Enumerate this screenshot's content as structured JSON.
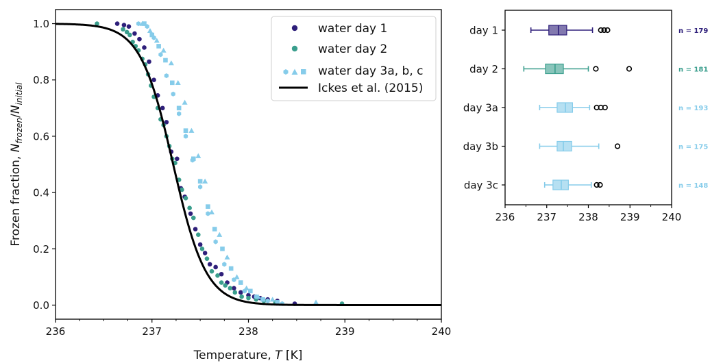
{
  "chart_data": [
    {
      "type": "scatter",
      "xlabel": "Temperature, T [K]",
      "xlabel_text": "Temperature, ",
      "xlabel_var": "T",
      "xlabel_unit": " [K]",
      "ylabel_prefix": "Frozen fraction, ",
      "ylabel_N1": "N",
      "ylabel_sub1": "frozen",
      "ylabel_slash": "/",
      "ylabel_N2": "N",
      "ylabel_sub2": "initial",
      "xlim": [
        236,
        240
      ],
      "ylim": [
        -0.05,
        1.05
      ],
      "xticks": [
        "236",
        "237",
        "238",
        "239",
        "240"
      ],
      "yticks": [
        "0.0",
        "0.2",
        "0.4",
        "0.6",
        "0.8",
        "1.0"
      ],
      "legend_position": "top-right",
      "legend": [
        "water day 1",
        "water day 2",
        "water day 3a, b, c",
        "Ickes et al. (2015)"
      ],
      "colors": {
        "day1": "#2e1f7a",
        "day2": "#3a9e8d",
        "day3": "#86ccea",
        "fit": "#000000"
      },
      "fit_curve": {
        "name": "Ickes et al. (2015)",
        "type": "logistic",
        "midpoint_K": 237.22,
        "width_K": 0.17
      },
      "series": [
        {
          "name": "water day 1",
          "marker": "circle",
          "points": [
            [
              236.64,
              1.0
            ],
            [
              236.71,
              0.995
            ],
            [
              236.76,
              0.99
            ],
            [
              236.82,
              0.965
            ],
            [
              236.87,
              0.945
            ],
            [
              236.92,
              0.915
            ],
            [
              236.97,
              0.865
            ],
            [
              237.02,
              0.8
            ],
            [
              237.06,
              0.745
            ],
            [
              237.11,
              0.7
            ],
            [
              237.15,
              0.65
            ],
            [
              237.2,
              0.545
            ],
            [
              237.26,
              0.52
            ],
            [
              237.3,
              0.415
            ],
            [
              237.34,
              0.385
            ],
            [
              237.4,
              0.325
            ],
            [
              237.45,
              0.27
            ],
            [
              237.5,
              0.215
            ],
            [
              237.55,
              0.185
            ],
            [
              237.6,
              0.145
            ],
            [
              237.66,
              0.135
            ],
            [
              237.72,
              0.11
            ],
            [
              237.78,
              0.08
            ],
            [
              237.85,
              0.06
            ],
            [
              237.92,
              0.045
            ],
            [
              238.0,
              0.035
            ],
            [
              238.06,
              0.03
            ],
            [
              238.12,
              0.025
            ],
            [
              238.2,
              0.02
            ],
            [
              238.3,
              0.015
            ],
            [
              238.48,
              0.005
            ]
          ]
        },
        {
          "name": "water day 2",
          "marker": "circle",
          "points": [
            [
              236.43,
              1.0
            ],
            [
              236.7,
              0.98
            ],
            [
              236.74,
              0.97
            ],
            [
              236.77,
              0.96
            ],
            [
              236.8,
              0.935
            ],
            [
              236.83,
              0.92
            ],
            [
              236.86,
              0.905
            ],
            [
              236.9,
              0.875
            ],
            [
              236.93,
              0.855
            ],
            [
              236.96,
              0.82
            ],
            [
              236.99,
              0.78
            ],
            [
              237.02,
              0.74
            ],
            [
              237.06,
              0.7
            ],
            [
              237.09,
              0.66
            ],
            [
              237.12,
              0.64
            ],
            [
              237.15,
              0.6
            ],
            [
              237.18,
              0.565
            ],
            [
              237.21,
              0.52
            ],
            [
              237.24,
              0.505
            ],
            [
              237.28,
              0.445
            ],
            [
              237.31,
              0.41
            ],
            [
              237.35,
              0.38
            ],
            [
              237.39,
              0.345
            ],
            [
              237.43,
              0.31
            ],
            [
              237.48,
              0.25
            ],
            [
              237.52,
              0.2
            ],
            [
              237.57,
              0.165
            ],
            [
              237.62,
              0.12
            ],
            [
              237.68,
              0.105
            ],
            [
              237.72,
              0.08
            ],
            [
              237.76,
              0.07
            ],
            [
              237.81,
              0.06
            ],
            [
              237.86,
              0.045
            ],
            [
              237.93,
              0.03
            ],
            [
              238.0,
              0.025
            ],
            [
              238.08,
              0.02
            ],
            [
              238.16,
              0.015
            ],
            [
              238.28,
              0.01
            ],
            [
              238.97,
              0.005
            ]
          ]
        },
        {
          "name": "water day 3a",
          "marker": "hexagon",
          "points": [
            [
              236.86,
              1.0
            ],
            [
              236.95,
              0.99
            ],
            [
              237.02,
              0.95
            ],
            [
              237.09,
              0.89
            ],
            [
              237.15,
              0.815
            ],
            [
              237.22,
              0.75
            ],
            [
              237.28,
              0.68
            ],
            [
              237.35,
              0.6
            ],
            [
              237.42,
              0.515
            ],
            [
              237.5,
              0.42
            ],
            [
              237.58,
              0.325
            ],
            [
              237.66,
              0.225
            ],
            [
              237.75,
              0.145
            ],
            [
              237.85,
              0.09
            ],
            [
              237.96,
              0.05
            ],
            [
              238.08,
              0.03
            ],
            [
              238.2,
              0.015
            ],
            [
              238.35,
              0.005
            ]
          ]
        },
        {
          "name": "water day 3b",
          "marker": "triangle",
          "points": [
            [
              236.9,
              1.0
            ],
            [
              236.98,
              0.975
            ],
            [
              237.05,
              0.94
            ],
            [
              237.12,
              0.905
            ],
            [
              237.2,
              0.86
            ],
            [
              237.27,
              0.79
            ],
            [
              237.34,
              0.72
            ],
            [
              237.41,
              0.62
            ],
            [
              237.48,
              0.53
            ],
            [
              237.55,
              0.44
            ],
            [
              237.62,
              0.33
            ],
            [
              237.7,
              0.25
            ],
            [
              237.78,
              0.17
            ],
            [
              237.88,
              0.1
            ],
            [
              237.98,
              0.06
            ],
            [
              238.1,
              0.03
            ],
            [
              238.25,
              0.02
            ],
            [
              238.7,
              0.01
            ]
          ]
        },
        {
          "name": "water day 3c",
          "marker": "square",
          "points": [
            [
              236.92,
              1.0
            ],
            [
              237.0,
              0.96
            ],
            [
              237.07,
              0.92
            ],
            [
              237.14,
              0.87
            ],
            [
              237.21,
              0.79
            ],
            [
              237.28,
              0.7
            ],
            [
              237.35,
              0.62
            ],
            [
              237.43,
              0.52
            ],
            [
              237.5,
              0.44
            ],
            [
              237.58,
              0.35
            ],
            [
              237.65,
              0.27
            ],
            [
              237.73,
              0.2
            ],
            [
              237.82,
              0.13
            ],
            [
              237.92,
              0.08
            ],
            [
              238.02,
              0.05
            ],
            [
              238.15,
              0.02
            ],
            [
              238.3,
              0.01
            ]
          ]
        }
      ]
    },
    {
      "type": "box",
      "orientation": "horizontal",
      "xlim": [
        236,
        240
      ],
      "xticks": [
        "236",
        "237",
        "238",
        "239",
        "240"
      ],
      "categories": [
        "day 1",
        "day 2",
        "day 3a",
        "day 3b",
        "day 3c"
      ],
      "boxes": [
        {
          "label": "day 1",
          "n_label": "n = 179",
          "color": "#2e1f7a",
          "whisker_low": 236.62,
          "q1": 237.05,
          "median": 237.28,
          "q3": 237.48,
          "whisker_high": 238.1,
          "outliers": [
            238.3,
            238.38,
            238.46
          ]
        },
        {
          "label": "day 2",
          "n_label": "n = 181",
          "color": "#3a9e8d",
          "whisker_low": 236.45,
          "q1": 236.97,
          "median": 237.2,
          "q3": 237.4,
          "whisker_high": 238.0,
          "outliers": [
            238.18,
            238.98
          ]
        },
        {
          "label": "day 3a",
          "n_label": "n = 193",
          "color": "#86ccea",
          "whisker_low": 236.83,
          "q1": 237.25,
          "median": 237.45,
          "q3": 237.62,
          "whisker_high": 238.03,
          "outliers": [
            238.2,
            238.3,
            238.4
          ]
        },
        {
          "label": "day 3b",
          "n_label": "n = 175",
          "color": "#86ccea",
          "whisker_low": 236.83,
          "q1": 237.25,
          "median": 237.4,
          "q3": 237.6,
          "whisker_high": 238.25,
          "outliers": [
            238.7
          ]
        },
        {
          "label": "day 3c",
          "n_label": "n = 148",
          "color": "#86ccea",
          "whisker_low": 236.95,
          "q1": 237.15,
          "median": 237.35,
          "q3": 237.52,
          "whisker_high": 238.07,
          "outliers": [
            238.2,
            238.28
          ]
        }
      ]
    }
  ]
}
